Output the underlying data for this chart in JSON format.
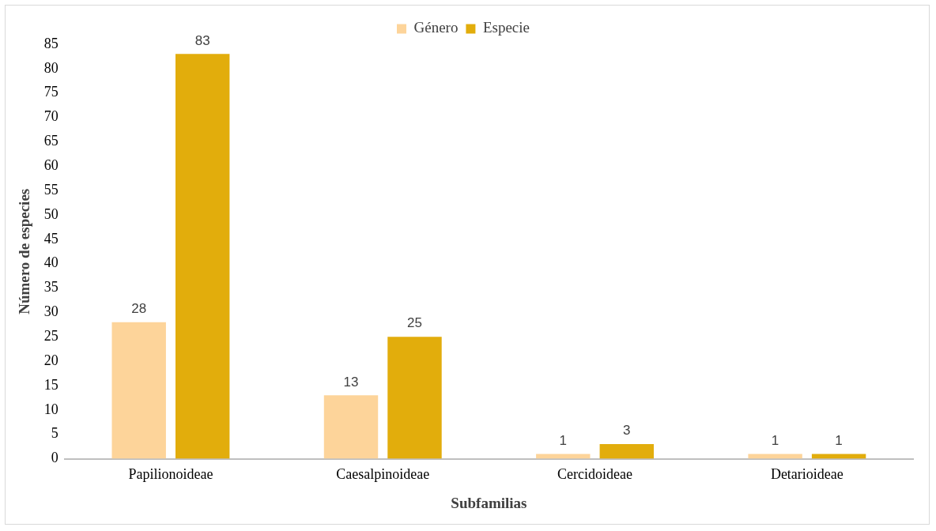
{
  "chart_data": {
    "type": "bar",
    "xlabel": "Subfamilias",
    "ylabel": "Número de especies",
    "categories": [
      "Papilionoideae",
      "Caesalpinoideae",
      "Cercidoideae",
      "Detarioideae"
    ],
    "series": [
      {
        "name": "Género",
        "color": "#fdd49a",
        "values": [
          28,
          13,
          1,
          1
        ]
      },
      {
        "name": "Especie",
        "color": "#e2ad0c",
        "values": [
          83,
          25,
          3,
          1
        ]
      }
    ],
    "ylim": [
      0,
      85
    ],
    "yticks": [
      0,
      5,
      10,
      15,
      20,
      25,
      30,
      35,
      40,
      45,
      50,
      55,
      60,
      65,
      70,
      75,
      80,
      85
    ],
    "grid": false,
    "legend": "top",
    "data_labels": true
  }
}
